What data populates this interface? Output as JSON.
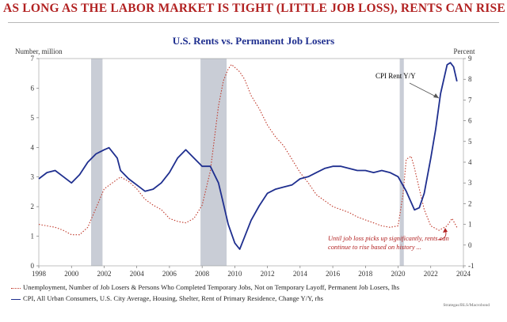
{
  "headline": "AS LONG AS THE LABOR MARKET IS TIGHT (LITTLE JOB LOSS), RENTS CAN RISE",
  "source": "Strategas/BLS/Macrobond",
  "chart_data": {
    "type": "line",
    "title": "U.S. Rents vs. Permanent Job Losers",
    "left_axis_label": "Number, million",
    "right_axis_label": "Percent",
    "xlim": [
      1998,
      2024
    ],
    "ylim_left": [
      0,
      7
    ],
    "ylim_right": [
      -1,
      9
    ],
    "x_ticks": [
      "1998",
      "2000",
      "2002",
      "2004",
      "2006",
      "2008",
      "2010",
      "2012",
      "2014",
      "2016",
      "2018",
      "2020",
      "2022",
      "2024"
    ],
    "y_left_ticks": [
      "0",
      "1",
      "2",
      "3",
      "4",
      "5",
      "6",
      "7"
    ],
    "y_right_ticks": [
      "-1",
      "0",
      "1",
      "2",
      "3",
      "4",
      "5",
      "6",
      "7",
      "8",
      "9"
    ],
    "recessions": [
      [
        2001.2,
        2001.9
      ],
      [
        2007.9,
        2009.5
      ],
      [
        2020.1,
        2020.35
      ]
    ],
    "grid": false,
    "colors": {
      "job_losers": "#c0392b",
      "cpi_rent": "#1f2f8f",
      "recession": "#c9cdd6",
      "note": "#b22222"
    },
    "series": [
      {
        "name": "Unemployment, Number of Job Losers & Persons Who Completed Temporary Jobs, Not on Temporary Layoff, Permanent Job Losers, lhs",
        "axis": "left",
        "style": "dotted",
        "x": [
          1998,
          1998.5,
          1999,
          1999.5,
          2000,
          2000.5,
          2001,
          2001.5,
          2002,
          2002.5,
          2003,
          2003.5,
          2004,
          2004.5,
          2005,
          2005.5,
          2006,
          2006.5,
          2007,
          2007.5,
          2008,
          2008.5,
          2009,
          2009.3,
          2009.6,
          2009.8,
          2010,
          2010.3,
          2010.6,
          2011,
          2011.5,
          2012,
          2012.5,
          2013,
          2013.5,
          2014,
          2014.5,
          2015,
          2015.5,
          2016,
          2016.5,
          2017,
          2017.5,
          2018,
          2018.5,
          2019,
          2019.5,
          2020,
          2020.3,
          2020.5,
          2020.8,
          2021,
          2021.3,
          2021.6,
          2022,
          2022.5,
          2023,
          2023.3,
          2023.6
        ],
        "y": [
          1.4,
          1.35,
          1.3,
          1.2,
          1.05,
          1.05,
          1.3,
          1.95,
          2.6,
          2.8,
          3.0,
          2.85,
          2.6,
          2.25,
          2.05,
          1.9,
          1.6,
          1.5,
          1.45,
          1.6,
          2.05,
          3.2,
          5.4,
          6.25,
          6.65,
          6.8,
          6.7,
          6.55,
          6.3,
          5.75,
          5.3,
          4.75,
          4.35,
          4.05,
          3.6,
          3.15,
          2.8,
          2.4,
          2.2,
          2.0,
          1.9,
          1.8,
          1.65,
          1.55,
          1.45,
          1.35,
          1.3,
          1.35,
          2.4,
          3.6,
          3.7,
          3.3,
          2.6,
          1.9,
          1.35,
          1.2,
          1.35,
          1.6,
          1.3
        ]
      },
      {
        "name": "CPI, All Urban Consumers, U.S. City Average, Housing, Shelter, Rent of Primary Residence, Change Y/Y, rhs",
        "axis": "right",
        "style": "solid",
        "x": [
          1998,
          1998.5,
          1999,
          1999.5,
          2000,
          2000.5,
          2001,
          2001.5,
          2002,
          2002.3,
          2002.8,
          2003,
          2003.5,
          2004,
          2004.5,
          2005,
          2005.5,
          2006,
          2006.5,
          2007,
          2007.5,
          2008,
          2008.5,
          2009,
          2009.3,
          2009.6,
          2010,
          2010.3,
          2010.6,
          2011,
          2011.5,
          2012,
          2012.5,
          2013,
          2013.5,
          2014,
          2014.5,
          2015,
          2015.5,
          2016,
          2016.5,
          2017,
          2017.5,
          2018,
          2018.5,
          2019,
          2019.5,
          2020,
          2020.5,
          2021,
          2021.3,
          2021.6,
          2022,
          2022.3,
          2022.6,
          2023,
          2023.2,
          2023.4,
          2023.6
        ],
        "y": [
          3.2,
          3.5,
          3.6,
          3.3,
          3.0,
          3.4,
          4.0,
          4.4,
          4.6,
          4.7,
          4.2,
          3.6,
          3.2,
          2.9,
          2.6,
          2.7,
          3.0,
          3.5,
          4.2,
          4.6,
          4.2,
          3.8,
          3.8,
          3.0,
          2.0,
          1.0,
          0.1,
          -0.2,
          0.4,
          1.2,
          1.9,
          2.5,
          2.7,
          2.8,
          2.9,
          3.2,
          3.3,
          3.5,
          3.7,
          3.8,
          3.8,
          3.7,
          3.6,
          3.6,
          3.5,
          3.6,
          3.5,
          3.3,
          2.6,
          1.7,
          1.8,
          2.5,
          4.2,
          5.6,
          7.3,
          8.7,
          8.8,
          8.6,
          7.9
        ]
      }
    ],
    "annotations": [
      {
        "text": "CPI Rent Y/Y",
        "color": "#000000"
      },
      {
        "text": "Until job loss picks up significantly, rents can continue to rise based on history ...",
        "color": "#b22222"
      }
    ]
  }
}
